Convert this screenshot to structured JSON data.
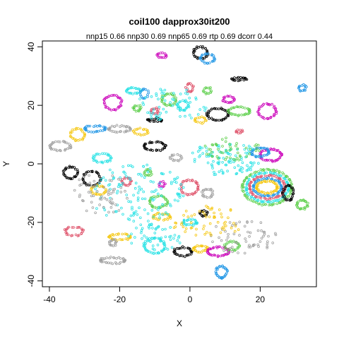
{
  "chart_data": {
    "type": "scatter",
    "title": "coil100 dapprox30it200",
    "subtitle": "nnp15 0.66 nnp30 0.69 nnp65 0.69 rtp 0.69 dcorr 0.44",
    "xlabel": "X",
    "ylabel": "Y",
    "xlim": [
      -42,
      36
    ],
    "ylim": [
      -42,
      42
    ],
    "xticks": [
      -40,
      -20,
      0,
      20
    ],
    "yticks": [
      -40,
      -20,
      0,
      20,
      40
    ],
    "grid": false,
    "legend": "none",
    "marker": "open-circle",
    "palette": [
      "#000000",
      "#DF536B",
      "#61D04F",
      "#2297E6",
      "#28E2E5",
      "#CD0BBC",
      "#F5C710",
      "#9E9E9E"
    ],
    "clusters": [
      {
        "type": "ring",
        "cx": -37,
        "cy": 6,
        "rx": 3.0,
        "ry": 1.5,
        "n": 30,
        "color": 7
      },
      {
        "type": "ring",
        "cx": -34,
        "cy": -3,
        "rx": 2.0,
        "ry": 2.0,
        "n": 30,
        "color": 0
      },
      {
        "type": "ring",
        "cx": -32,
        "cy": 10,
        "rx": 2.0,
        "ry": 2.0,
        "n": 25,
        "color": 6
      },
      {
        "type": "ring",
        "cx": -28,
        "cy": -5,
        "rx": 2.5,
        "ry": 2.5,
        "n": 35,
        "color": 0
      },
      {
        "type": "ring",
        "cx": -26,
        "cy": -9,
        "rx": 2.0,
        "ry": 1.5,
        "n": 25,
        "color": 6
      },
      {
        "type": "ring",
        "cx": -25,
        "cy": 2,
        "rx": 2.5,
        "ry": 1.5,
        "n": 30,
        "color": 4
      },
      {
        "type": "ring",
        "cx": -27,
        "cy": 12,
        "rx": 3.0,
        "ry": 1.0,
        "n": 30,
        "color": 3
      },
      {
        "type": "ring",
        "cx": -22,
        "cy": 21,
        "rx": 2.5,
        "ry": 2.5,
        "n": 35,
        "color": 5
      },
      {
        "type": "ring",
        "cx": -16,
        "cy": 25,
        "rx": 2.0,
        "ry": 1.0,
        "n": 25,
        "color": 4
      },
      {
        "type": "ring",
        "cx": -13,
        "cy": 24,
        "rx": 1.0,
        "ry": 1.5,
        "n": 15,
        "color": 3
      },
      {
        "type": "ring",
        "cx": -15,
        "cy": 19,
        "rx": 1.0,
        "ry": 1.0,
        "n": 15,
        "color": 2
      },
      {
        "type": "ring",
        "cx": -10,
        "cy": 18,
        "rx": 1.0,
        "ry": 1.0,
        "n": 15,
        "color": 1
      },
      {
        "type": "ring",
        "cx": -20,
        "cy": 12,
        "rx": 3.0,
        "ry": 1.0,
        "n": 30,
        "color": 7
      },
      {
        "type": "ring",
        "cx": -14,
        "cy": 11,
        "rx": 2.0,
        "ry": 1.0,
        "n": 20,
        "color": 6
      },
      {
        "type": "ring",
        "cx": -10,
        "cy": 15,
        "rx": 2.0,
        "ry": 0.5,
        "n": 20,
        "color": 0
      },
      {
        "type": "ring",
        "cx": -8,
        "cy": 37,
        "rx": 1.2,
        "ry": 0.8,
        "n": 15,
        "color": 5
      },
      {
        "type": "ring",
        "cx": -6,
        "cy": 22,
        "rx": 2.0,
        "ry": 2.0,
        "n": 30,
        "color": 2
      },
      {
        "type": "ring",
        "cx": -2,
        "cy": 20,
        "rx": 1.5,
        "ry": 1.5,
        "n": 20,
        "color": 4
      },
      {
        "type": "ring",
        "cx": 0,
        "cy": 26,
        "rx": 1.0,
        "ry": 1.5,
        "n": 15,
        "color": 1
      },
      {
        "type": "ring",
        "cx": 3,
        "cy": 38,
        "rx": 2.0,
        "ry": 2.0,
        "n": 30,
        "color": 0
      },
      {
        "type": "ring",
        "cx": 5,
        "cy": 36,
        "rx": 2.0,
        "ry": 1.5,
        "n": 25,
        "color": 3
      },
      {
        "type": "ring",
        "cx": 14,
        "cy": 29,
        "rx": 2.0,
        "ry": 0.5,
        "n": 20,
        "color": 0
      },
      {
        "type": "ring",
        "cx": 5,
        "cy": 25,
        "rx": 1.0,
        "ry": 1.0,
        "n": 15,
        "color": 2
      },
      {
        "type": "ring",
        "cx": 11,
        "cy": 22,
        "rx": 1.5,
        "ry": 1.0,
        "n": 20,
        "color": 5
      },
      {
        "type": "ring",
        "cx": 8,
        "cy": 17,
        "rx": 3.0,
        "ry": 2.0,
        "n": 40,
        "color": 0
      },
      {
        "type": "ring",
        "cx": 14,
        "cy": 18,
        "rx": 3.0,
        "ry": 1.5,
        "n": 35,
        "color": 2
      },
      {
        "type": "ring",
        "cx": 22,
        "cy": 18,
        "rx": 2.5,
        "ry": 2.5,
        "n": 35,
        "color": 5
      },
      {
        "type": "ring",
        "cx": 3,
        "cy": 15,
        "rx": 1.5,
        "ry": 1.0,
        "n": 15,
        "color": 6
      },
      {
        "type": "ring",
        "cx": -10,
        "cy": 6,
        "rx": 3.0,
        "ry": 1.5,
        "n": 35,
        "color": 0
      },
      {
        "type": "ring",
        "cx": -4,
        "cy": 2,
        "rx": 1.5,
        "ry": 1.0,
        "n": 15,
        "color": 7
      },
      {
        "type": "ring",
        "cx": -12,
        "cy": -3,
        "rx": 1.0,
        "ry": 1.0,
        "n": 15,
        "color": 2
      },
      {
        "type": "ring",
        "cx": -18,
        "cy": -6,
        "rx": 1.2,
        "ry": 1.2,
        "n": 18,
        "color": 1
      },
      {
        "type": "ring",
        "cx": -8,
        "cy": -7,
        "rx": 0.8,
        "ry": 0.8,
        "n": 10,
        "color": 5
      },
      {
        "type": "ring",
        "cx": -9,
        "cy": -13,
        "rx": 2.5,
        "ry": 2.0,
        "n": 35,
        "color": 2
      },
      {
        "type": "ring",
        "cx": 0,
        "cy": -8,
        "rx": 2.5,
        "ry": 2.5,
        "n": 35,
        "color": 1
      },
      {
        "type": "ring",
        "cx": 5,
        "cy": -10,
        "rx": 1.5,
        "ry": 1.5,
        "n": 20,
        "color": 7
      },
      {
        "type": "ring",
        "cx": 4,
        "cy": -17,
        "rx": 1.0,
        "ry": 1.0,
        "n": 15,
        "color": 0
      },
      {
        "type": "ring",
        "cx": 0,
        "cy": -20,
        "rx": 2.0,
        "ry": 1.0,
        "n": 25,
        "color": 4
      },
      {
        "type": "ring",
        "cx": -8,
        "cy": -18,
        "rx": 2.5,
        "ry": 1.0,
        "n": 25,
        "color": 6
      },
      {
        "type": "ring",
        "cx": -20,
        "cy": -25,
        "rx": 3.0,
        "ry": 1.0,
        "n": 30,
        "color": 6
      },
      {
        "type": "ring",
        "cx": -33,
        "cy": -23,
        "rx": 2.5,
        "ry": 1.5,
        "n": 25,
        "color": 1
      },
      {
        "type": "ring",
        "cx": -22,
        "cy": -27,
        "rx": 1.0,
        "ry": 1.0,
        "n": 15,
        "color": 7
      },
      {
        "type": "ring",
        "cx": -22,
        "cy": -33,
        "rx": 3.5,
        "ry": 1.0,
        "n": 35,
        "color": 7
      },
      {
        "type": "ring",
        "cx": -10,
        "cy": -28,
        "rx": 3.0,
        "ry": 2.5,
        "n": 45,
        "color": 4
      },
      {
        "type": "ring",
        "cx": -2,
        "cy": -30,
        "rx": 2.5,
        "ry": 1.5,
        "n": 30,
        "color": 0
      },
      {
        "type": "ring",
        "cx": 3,
        "cy": -29,
        "rx": 2.0,
        "ry": 1.0,
        "n": 25,
        "color": 6
      },
      {
        "type": "ring",
        "cx": 8,
        "cy": -30,
        "rx": 3.0,
        "ry": 1.5,
        "n": 40,
        "color": 5
      },
      {
        "type": "ring",
        "cx": 12,
        "cy": -28,
        "rx": 2.0,
        "ry": 1.5,
        "n": 25,
        "color": 2
      },
      {
        "type": "ring",
        "cx": 9,
        "cy": -37,
        "rx": 1.5,
        "ry": 2.0,
        "n": 30,
        "color": 3
      },
      {
        "type": "ring",
        "cx": 22,
        "cy": -8,
        "rx": 7.0,
        "ry": 6.0,
        "n": 90,
        "color": 2
      },
      {
        "type": "ring",
        "cx": 22,
        "cy": -8,
        "rx": 6.0,
        "ry": 5.0,
        "n": 80,
        "color": 4
      },
      {
        "type": "ring",
        "cx": 22,
        "cy": -8,
        "rx": 5.0,
        "ry": 4.0,
        "n": 70,
        "color": 1
      },
      {
        "type": "ring",
        "cx": 22,
        "cy": -8,
        "rx": 4.0,
        "ry": 3.0,
        "n": 60,
        "color": 3
      },
      {
        "type": "ring",
        "cx": 22,
        "cy": -8,
        "rx": 3.0,
        "ry": 2.0,
        "n": 45,
        "color": 6
      },
      {
        "type": "ring",
        "cx": 23,
        "cy": 3,
        "rx": 3.0,
        "ry": 2.0,
        "n": 45,
        "color": 5
      },
      {
        "type": "ring",
        "cx": 20,
        "cy": 4,
        "rx": 2.5,
        "ry": 1.5,
        "n": 35,
        "color": 3
      },
      {
        "type": "ring",
        "cx": 28,
        "cy": -10,
        "rx": 1.5,
        "ry": 2.5,
        "n": 30,
        "color": 0
      },
      {
        "type": "ring",
        "cx": 32,
        "cy": -14,
        "rx": 1.5,
        "ry": 1.5,
        "n": 25,
        "color": 2
      },
      {
        "type": "ring",
        "cx": 32,
        "cy": 26,
        "rx": 1.0,
        "ry": 1.0,
        "n": 15,
        "color": 3
      },
      {
        "type": "ring",
        "cx": 14,
        "cy": 11,
        "rx": 1.0,
        "ry": 0.5,
        "n": 10,
        "color": 1
      },
      {
        "type": "scatter",
        "cx": -15,
        "cy": -10,
        "rx": 14,
        "ry": 10,
        "n": 130,
        "color": 4
      },
      {
        "type": "scatter",
        "cx": 10,
        "cy": 2,
        "rx": 10,
        "ry": 6,
        "n": 100,
        "color": 4
      },
      {
        "type": "scatter",
        "cx": -5,
        "cy": 20,
        "rx": 10,
        "ry": 6,
        "n": 60,
        "color": 4
      },
      {
        "type": "scatter",
        "cx": -25,
        "cy": -10,
        "rx": 8,
        "ry": 8,
        "n": 60,
        "color": 7
      },
      {
        "type": "scatter",
        "cx": 15,
        "cy": -25,
        "rx": 10,
        "ry": 6,
        "n": 60,
        "color": 7
      },
      {
        "type": "scatter",
        "cx": 5,
        "cy": -20,
        "rx": 10,
        "ry": 6,
        "n": 60,
        "color": 6
      },
      {
        "type": "scatter",
        "cx": 12,
        "cy": 5,
        "rx": 8,
        "ry": 4,
        "n": 50,
        "color": 2
      },
      {
        "type": "scatter",
        "cx": -10,
        "cy": -25,
        "rx": 8,
        "ry": 5,
        "n": 50,
        "color": 4
      }
    ]
  }
}
